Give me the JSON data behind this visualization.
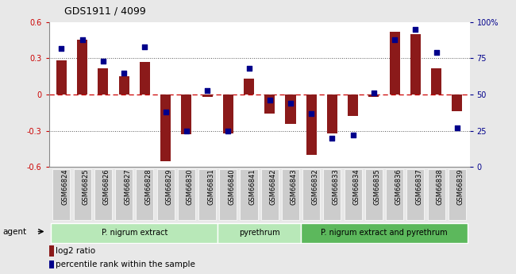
{
  "title": "GDS1911 / 4099",
  "samples": [
    "GSM66824",
    "GSM66825",
    "GSM66826",
    "GSM66827",
    "GSM66828",
    "GSM66829",
    "GSM66830",
    "GSM66831",
    "GSM66840",
    "GSM66841",
    "GSM66842",
    "GSM66843",
    "GSM66832",
    "GSM66833",
    "GSM66834",
    "GSM66835",
    "GSM66836",
    "GSM66837",
    "GSM66838",
    "GSM66839"
  ],
  "log2_ratio": [
    0.28,
    0.45,
    0.22,
    0.15,
    0.27,
    -0.55,
    -0.33,
    -0.02,
    -0.32,
    0.13,
    -0.16,
    -0.24,
    -0.5,
    -0.32,
    -0.18,
    -0.02,
    0.52,
    0.5,
    0.22,
    -0.14
  ],
  "percentile": [
    82,
    88,
    73,
    65,
    83,
    38,
    25,
    53,
    25,
    68,
    46,
    44,
    37,
    20,
    22,
    51,
    88,
    95,
    79,
    27
  ],
  "bar_color": "#8b1a1a",
  "dot_color": "#00008b",
  "ylim": [
    -0.6,
    0.6
  ],
  "yticks_left": [
    -0.6,
    -0.3,
    0.0,
    0.3,
    0.6
  ],
  "yticks_right": [
    0,
    25,
    50,
    75,
    100
  ],
  "hline_color": "#cc0000",
  "dotted_color": "#555555",
  "group_colors": [
    "#b8e8b8",
    "#b8e8b8",
    "#5cb85c"
  ],
  "groups": [
    {
      "label": "P. nigrum extract",
      "start": 0,
      "end": 8
    },
    {
      "label": "pyrethrum",
      "start": 8,
      "end": 12
    },
    {
      "label": "P. nigrum extract and pyrethrum",
      "start": 12,
      "end": 20
    }
  ],
  "agent_label": "agent",
  "legend_items": [
    {
      "color": "#8b1a1a",
      "label": "log2 ratio"
    },
    {
      "color": "#00008b",
      "label": "percentile rank within the sample"
    }
  ],
  "bar_width": 0.5,
  "dot_size": 22,
  "background_color": "#e8e8e8",
  "plot_bg": "#ffffff",
  "tick_box_color": "#cccccc"
}
